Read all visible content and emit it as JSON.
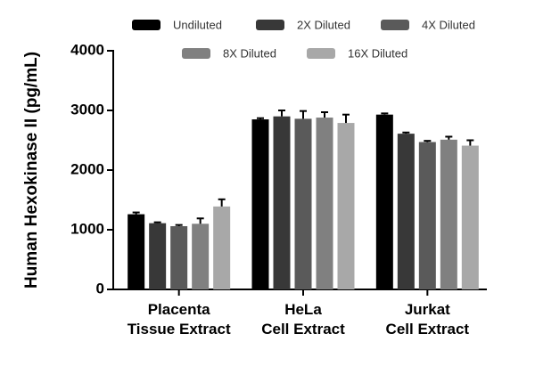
{
  "chart_data": {
    "type": "bar",
    "y_label": "Human Hexokinase II (pg/mL)",
    "categories": [
      "Placenta Tissue Extract",
      "HeLa Cell Extract",
      "Jurkat Cell Extract"
    ],
    "series": [
      {
        "name": "Undiluted",
        "color": "#000000",
        "values": [
          1260,
          2850,
          2930
        ],
        "errors": [
          30,
          20,
          20
        ]
      },
      {
        "name": "2X Diluted",
        "color": "#383838",
        "values": [
          1110,
          2900,
          2610
        ],
        "errors": [
          15,
          100,
          20
        ]
      },
      {
        "name": "4X Diluted",
        "color": "#5a5a5a",
        "values": [
          1060,
          2860,
          2470
        ],
        "errors": [
          20,
          130,
          20
        ]
      },
      {
        "name": "8X Diluted",
        "color": "#808080",
        "values": [
          1100,
          2880,
          2510
        ],
        "errors": [
          90,
          90,
          50
        ]
      },
      {
        "name": "16X Diluted",
        "color": "#a8a8a8",
        "values": [
          1390,
          2790,
          2410
        ],
        "errors": [
          120,
          140,
          90
        ]
      }
    ],
    "ylim": [
      0,
      4000
    ],
    "yticks": [
      0,
      1000,
      2000,
      3000,
      4000
    ]
  }
}
